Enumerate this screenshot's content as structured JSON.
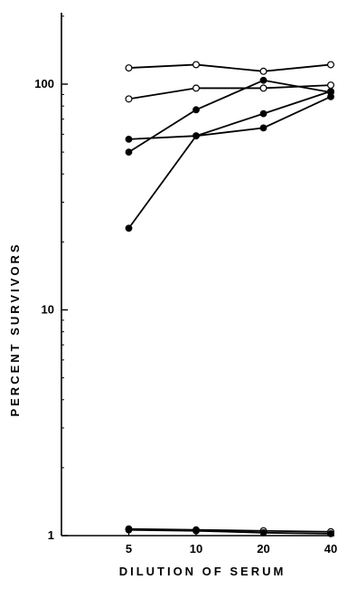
{
  "chart_data": {
    "type": "line",
    "title": "",
    "xlabel": "DILUTION OF SERUM",
    "ylabel": "PERCENT SURVIVORS",
    "x_scale": "log2",
    "y_scale": "log10",
    "x": [
      5,
      10,
      20,
      40
    ],
    "x_tick_labels": [
      "5",
      "10",
      "20",
      "40"
    ],
    "y_ticks": [
      1,
      10,
      100
    ],
    "y_tick_labels": [
      "1",
      "10",
      "100"
    ],
    "xlim": [
      2.5,
      40
    ],
    "ylim": [
      1,
      200
    ],
    "grid": false,
    "legend": "none",
    "series": [
      {
        "marker": "open",
        "values": [
          118,
          122,
          114,
          122
        ]
      },
      {
        "marker": "open",
        "values": [
          86,
          96,
          96,
          99
        ]
      },
      {
        "marker": "filled",
        "values": [
          50,
          77,
          104,
          92
        ]
      },
      {
        "marker": "filled",
        "values": [
          57,
          59,
          74,
          93
        ]
      },
      {
        "marker": "filled",
        "values": [
          23,
          59,
          64,
          88
        ]
      },
      {
        "marker": "open",
        "values": [
          1.07,
          1.06,
          1.05,
          1.04
        ]
      },
      {
        "marker": "filled",
        "values": [
          1.06,
          1.05,
          1.03,
          1.02
        ]
      }
    ]
  }
}
